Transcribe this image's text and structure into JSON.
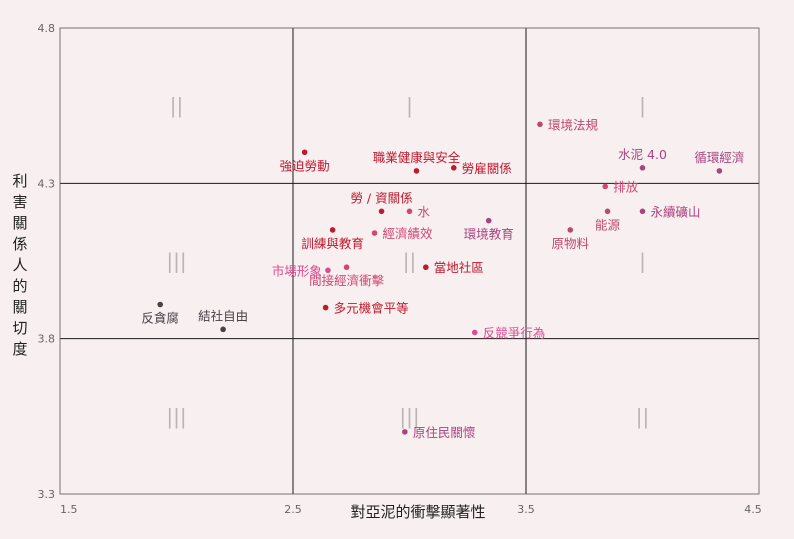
{
  "chart_data": {
    "type": "scatter",
    "title": "",
    "xlabel": "對亞泥的衝擊顯著性",
    "ylabel": "利害關係人的關切度",
    "xlim": [
      1.5,
      4.5
    ],
    "ylim": [
      3.3,
      4.8
    ],
    "x_ticks": [
      "1.5",
      "2.5",
      "3.5",
      "4.5"
    ],
    "y_ticks": [
      "3.3",
      "3.8",
      "4.3",
      "4.8"
    ],
    "dividers": {
      "x": [
        2.5,
        3.5
      ],
      "y": [
        3.8,
        4.3
      ]
    },
    "grid": false,
    "quadrant_labels": [
      {
        "text": "||",
        "x": 2.0,
        "y": 4.55
      },
      {
        "text": "|",
        "x": 3.0,
        "y": 4.55
      },
      {
        "text": "|",
        "x": 4.0,
        "y": 4.55
      },
      {
        "text": "|||",
        "x": 2.0,
        "y": 4.05
      },
      {
        "text": "||",
        "x": 3.0,
        "y": 4.05
      },
      {
        "text": "|",
        "x": 4.0,
        "y": 4.05
      },
      {
        "text": "|||",
        "x": 2.0,
        "y": 3.55
      },
      {
        "text": "|||",
        "x": 3.0,
        "y": 3.55
      },
      {
        "text": "||",
        "x": 4.0,
        "y": 3.55
      }
    ],
    "points": [
      {
        "label": "強迫勞動",
        "x": 2.55,
        "y": 4.4,
        "color": "#c0192d",
        "pos": "below"
      },
      {
        "label": "職業健康與安全",
        "x": 3.03,
        "y": 4.34,
        "color": "#c0192d",
        "pos": "above"
      },
      {
        "label": "勞雇關係",
        "x": 3.19,
        "y": 4.35,
        "color": "#c0192d",
        "pos": "right"
      },
      {
        "label": "環境法規",
        "x": 3.56,
        "y": 4.49,
        "color": "#bd4a6d",
        "pos": "right"
      },
      {
        "label": "水泥 4.0",
        "x": 4.0,
        "y": 4.35,
        "color": "#a9457e",
        "pos": "above"
      },
      {
        "label": "循環經濟",
        "x": 4.33,
        "y": 4.34,
        "color": "#a9457e",
        "pos": "above"
      },
      {
        "label": "排放",
        "x": 3.84,
        "y": 4.29,
        "color": "#d24576",
        "pos": "right"
      },
      {
        "label": "能源",
        "x": 3.85,
        "y": 4.21,
        "color": "#bd4a6d",
        "pos": "below"
      },
      {
        "label": "永續礦山",
        "x": 4.0,
        "y": 4.21,
        "color": "#a9457e",
        "pos": "right"
      },
      {
        "label": "原物料",
        "x": 3.69,
        "y": 4.15,
        "color": "#bd4a6d",
        "pos": "below"
      },
      {
        "label": "勞 / 資關係",
        "x": 2.88,
        "y": 4.21,
        "color": "#c0192d",
        "pos": "above"
      },
      {
        "label": "水",
        "x": 3.0,
        "y": 4.21,
        "color": "#d24576",
        "pos": "right"
      },
      {
        "label": "經濟績效",
        "x": 2.85,
        "y": 4.14,
        "color": "#d24576",
        "pos": "right"
      },
      {
        "label": "環境教育",
        "x": 3.34,
        "y": 4.18,
        "color": "#a9457e",
        "pos": "below"
      },
      {
        "label": "訓練與教育",
        "x": 2.67,
        "y": 4.15,
        "color": "#c0192d",
        "pos": "below"
      },
      {
        "label": "市場形象",
        "x": 2.65,
        "y": 4.02,
        "color": "#dd4b8f",
        "pos": "left"
      },
      {
        "label": "間接經濟衝擊",
        "x": 2.73,
        "y": 4.03,
        "color": "#d24576",
        "pos": "below"
      },
      {
        "label": "當地社區",
        "x": 3.07,
        "y": 4.03,
        "color": "#c0192d",
        "pos": "right"
      },
      {
        "label": "反貪腐",
        "x": 1.93,
        "y": 3.91,
        "color": "#4a3f47",
        "pos": "below"
      },
      {
        "label": "結社自由",
        "x": 2.2,
        "y": 3.83,
        "color": "#4a3f47",
        "pos": "above"
      },
      {
        "label": "多元機會平等",
        "x": 2.64,
        "y": 3.9,
        "color": "#c0192d",
        "pos": "right"
      },
      {
        "label": "反競爭行為",
        "x": 3.28,
        "y": 3.82,
        "color": "#dd4b8f",
        "pos": "right"
      },
      {
        "label": "原住民關懷",
        "x": 2.98,
        "y": 3.5,
        "color": "#a9457e",
        "pos": "right"
      }
    ]
  }
}
